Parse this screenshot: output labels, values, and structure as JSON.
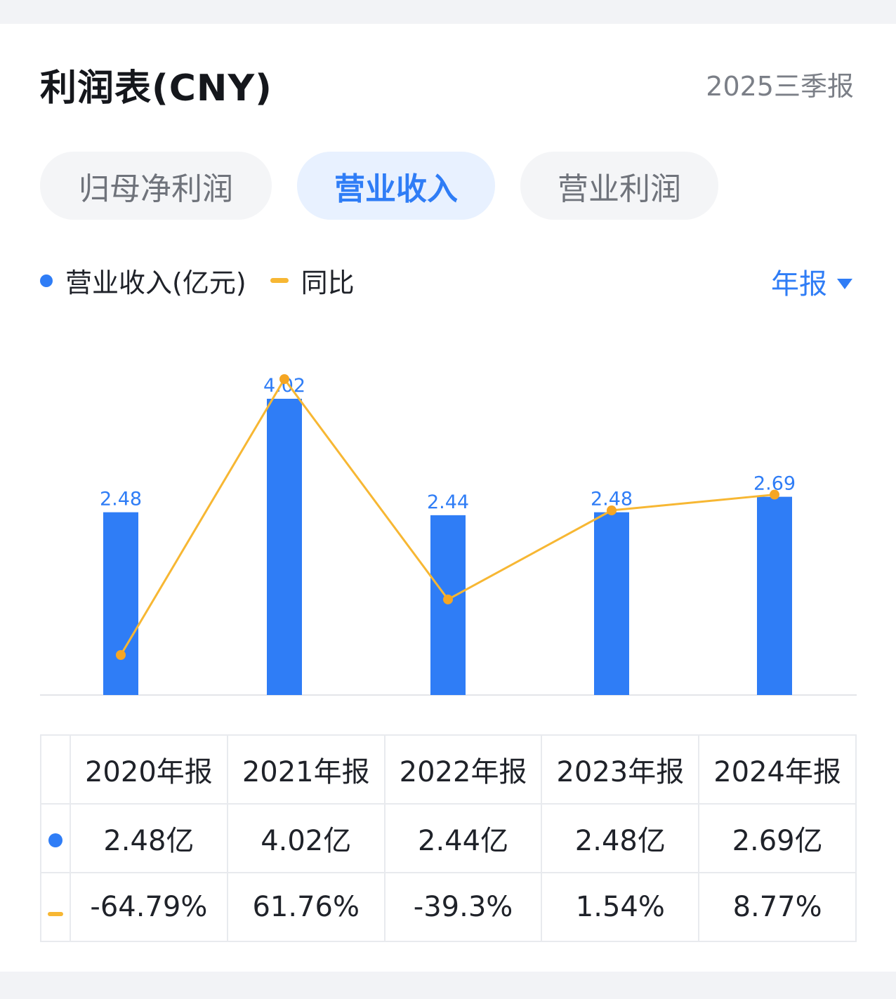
{
  "header": {
    "title": "利润表(CNY)",
    "period": "2025三季报"
  },
  "tabs": [
    {
      "label": "归母净利润",
      "active": false
    },
    {
      "label": "营业收入",
      "active": true
    },
    {
      "label": "营业利润",
      "active": false
    }
  ],
  "legend": {
    "bar_label": "营业收入(亿元)",
    "line_label": "同比"
  },
  "period_select": {
    "label": "年报"
  },
  "colors": {
    "bar": "#2f7df6",
    "line": "#f7b733",
    "positive": "#e24a4a",
    "negative": "#26a36b"
  },
  "chart_data": {
    "type": "bar",
    "categories": [
      "2020年报",
      "2021年报",
      "2022年报",
      "2023年报",
      "2024年报"
    ],
    "series": [
      {
        "name": "营业收入(亿元)",
        "type": "bar",
        "values": [
          2.48,
          4.02,
          2.44,
          2.48,
          2.69
        ],
        "labels": [
          "2.48",
          "4.02",
          "2.44",
          "2.48",
          "2.69"
        ]
      },
      {
        "name": "同比",
        "type": "line",
        "values": [
          -64.79,
          61.76,
          -39.3,
          1.54,
          8.77
        ]
      }
    ],
    "grid": false,
    "legend": "top-left"
  },
  "table": {
    "headers": [
      "2020年报",
      "2021年报",
      "2022年报",
      "2023年报",
      "2024年报"
    ],
    "revenue": [
      "2.48亿",
      "4.02亿",
      "2.44亿",
      "2.48亿",
      "2.69亿"
    ],
    "yoy": [
      "-64.79%",
      "61.76%",
      "-39.3%",
      "1.54%",
      "8.77%"
    ]
  }
}
